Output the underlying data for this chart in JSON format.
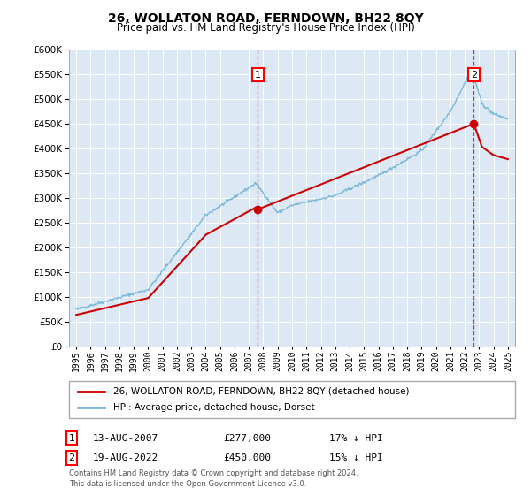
{
  "title": "26, WOLLATON ROAD, FERNDOWN, BH22 8QY",
  "subtitle": "Price paid vs. HM Land Registry's House Price Index (HPI)",
  "plot_bg_color": "#dce9f5",
  "hpi_color": "#7ab8d9",
  "price_color": "#cc0000",
  "sale1_year": 2007.62,
  "sale1_price": 277000,
  "sale2_year": 2022.63,
  "sale2_price": 450000,
  "ylim_min": 0,
  "ylim_max": 600000,
  "xlim_min": 1994.5,
  "xlim_max": 2025.5,
  "legend_label1": "26, WOLLATON ROAD, FERNDOWN, BH22 8QY (detached house)",
  "legend_label2": "HPI: Average price, detached house, Dorset",
  "annot1_label": "1",
  "annot1_date": "13-AUG-2007",
  "annot1_price": "£277,000",
  "annot1_pct": "17% ↓ HPI",
  "annot2_label": "2",
  "annot2_date": "19-AUG-2022",
  "annot2_price": "£450,000",
  "annot2_pct": "15% ↓ HPI",
  "footnote": "Contains HM Land Registry data © Crown copyright and database right 2024.\nThis data is licensed under the Open Government Licence v3.0."
}
